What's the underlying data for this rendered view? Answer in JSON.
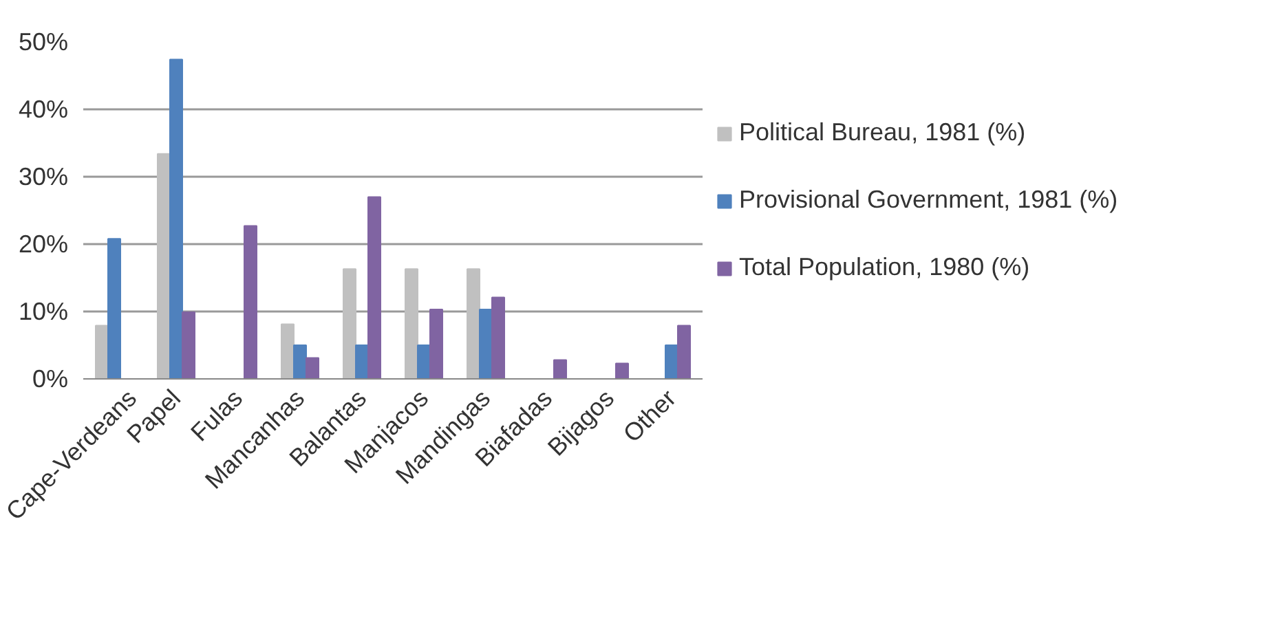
{
  "chart_data": {
    "type": "bar",
    "categories": [
      "Cape-Verdeans",
      "Papel",
      "Fulas",
      "Mancanhas",
      "Balantas",
      "Manjacos",
      "Mandingas",
      "Biafadas",
      "Bijagos",
      "Other"
    ],
    "series": [
      {
        "name": "Political Bureau, 1981 (%)",
        "color": "#c0c0c0",
        "values": [
          7.9,
          33.4,
          null,
          8.1,
          16.3,
          16.3,
          16.3,
          null,
          null,
          null
        ]
      },
      {
        "name": "Provisional Government, 1981 (%)",
        "color": "#4f81bd",
        "values": [
          20.8,
          47.4,
          null,
          5.0,
          5.0,
          5.0,
          10.3,
          null,
          null,
          5.0
        ]
      },
      {
        "name": "Total Population, 1980 (%)",
        "color": "#8064a2",
        "values": [
          null,
          9.9,
          22.7,
          3.1,
          27.0,
          10.3,
          12.1,
          2.8,
          2.3,
          7.9
        ]
      }
    ],
    "ylim": [
      0,
      50
    ],
    "yticks": [
      {
        "value": 0,
        "label": "0%"
      },
      {
        "value": 10,
        "label": "10%"
      },
      {
        "value": 20,
        "label": "20%"
      },
      {
        "value": 30,
        "label": "30%"
      },
      {
        "value": 40,
        "label": "40%"
      },
      {
        "value": 50,
        "label": "50%"
      }
    ],
    "grid": "y",
    "legend": "right"
  }
}
